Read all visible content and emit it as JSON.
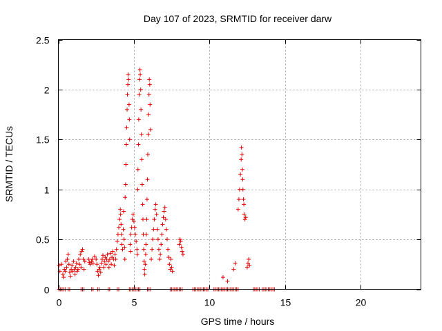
{
  "chart_data": {
    "type": "scatter",
    "title": "Day 107 of 2023, SRMTID for receiver darw",
    "xlabel": "GPS time / hours",
    "ylabel": "SRMTID / TECUs",
    "xlim": [
      0,
      24
    ],
    "ylim": [
      0,
      2.5
    ],
    "xticks": [
      0,
      5,
      10,
      15,
      20
    ],
    "yticks": [
      0,
      0.5,
      1,
      1.5,
      2,
      2.5
    ],
    "xtick_labels": [
      "0",
      "5",
      "10",
      "15",
      "20"
    ],
    "ytick_labels": [
      "0",
      "0.5",
      "1",
      "1.5",
      "2",
      "2.5"
    ],
    "grid": true,
    "marker": "plus",
    "color": "#e00000",
    "series": [
      {
        "name": "darw",
        "points": [
          [
            0.05,
            0.24
          ],
          [
            0.1,
            0.18
          ],
          [
            0.2,
            0.25
          ],
          [
            0.3,
            0.15
          ],
          [
            0.35,
            0.12
          ],
          [
            0.4,
            0.2
          ],
          [
            0.45,
            0.18
          ],
          [
            0.5,
            0.28
          ],
          [
            0.55,
            0.22
          ],
          [
            0.6,
            0.3
          ],
          [
            0.65,
            0.35
          ],
          [
            0.7,
            0.25
          ],
          [
            0.75,
            0.17
          ],
          [
            0.8,
            0.13
          ],
          [
            0.85,
            0.2
          ],
          [
            0.9,
            0.24
          ],
          [
            0.95,
            0.18
          ],
          [
            1.0,
            0.28
          ],
          [
            1.05,
            0.2
          ],
          [
            1.1,
            0.15
          ],
          [
            1.15,
            0.22
          ],
          [
            1.2,
            0.26
          ],
          [
            1.25,
            0.18
          ],
          [
            1.3,
            0.2
          ],
          [
            1.35,
            0.3
          ],
          [
            1.4,
            0.25
          ],
          [
            1.45,
            0.35
          ],
          [
            1.5,
            0.22
          ],
          [
            1.55,
            0.38
          ],
          [
            1.6,
            0.4
          ],
          [
            1.65,
            0.3
          ],
          [
            1.7,
            0.2
          ],
          [
            1.75,
            0.28
          ],
          [
            2.0,
            0.3
          ],
          [
            2.05,
            0.27
          ],
          [
            2.1,
            0.25
          ],
          [
            2.2,
            0.28
          ],
          [
            2.25,
            0.3
          ],
          [
            2.3,
            0.26
          ],
          [
            2.4,
            0.33
          ],
          [
            2.5,
            0.3
          ],
          [
            2.55,
            0.25
          ],
          [
            2.6,
            0.18
          ],
          [
            2.65,
            0.14
          ],
          [
            2.7,
            0.2
          ],
          [
            2.75,
            0.22
          ],
          [
            2.8,
            0.17
          ],
          [
            2.85,
            0.26
          ],
          [
            2.9,
            0.3
          ],
          [
            2.95,
            0.34
          ],
          [
            3.0,
            0.22
          ],
          [
            3.05,
            0.28
          ],
          [
            3.1,
            0.32
          ],
          [
            3.15,
            0.25
          ],
          [
            3.2,
            0.3
          ],
          [
            3.25,
            0.35
          ],
          [
            3.3,
            0.28
          ],
          [
            3.35,
            0.22
          ],
          [
            3.4,
            0.3
          ],
          [
            3.45,
            0.36
          ],
          [
            3.5,
            0.25
          ],
          [
            3.55,
            0.32
          ],
          [
            3.6,
            0.38
          ],
          [
            3.65,
            0.3
          ],
          [
            3.7,
            0.24
          ],
          [
            3.75,
            0.35
          ],
          [
            3.8,
            0.3
          ],
          [
            3.85,
            0.4
          ],
          [
            3.9,
            0.48
          ],
          [
            3.95,
            0.55
          ],
          [
            4.0,
            0.62
          ],
          [
            4.05,
            0.7
          ],
          [
            4.1,
            0.8
          ],
          [
            4.12,
            0.75
          ],
          [
            4.15,
            0.65
          ],
          [
            4.18,
            0.55
          ],
          [
            4.2,
            0.45
          ],
          [
            4.25,
            0.4
          ],
          [
            4.3,
            0.6
          ],
          [
            4.32,
            0.78
          ],
          [
            4.35,
            0.5
          ],
          [
            4.38,
            0.42
          ],
          [
            4.4,
            0.3
          ],
          [
            4.42,
            0.92
          ],
          [
            4.45,
            1.05
          ],
          [
            4.47,
            1.25
          ],
          [
            4.5,
            1.45
          ],
          [
            4.52,
            1.62
          ],
          [
            4.55,
            1.8
          ],
          [
            4.57,
            1.95
          ],
          [
            4.6,
            2.05
          ],
          [
            4.62,
            2.15
          ],
          [
            4.65,
            2.1
          ],
          [
            4.68,
            1.85
          ],
          [
            4.7,
            1.7
          ],
          [
            4.72,
            1.5
          ],
          [
            4.75,
            0.45
          ],
          [
            4.78,
            0.38
          ],
          [
            4.8,
            0.55
          ],
          [
            4.85,
            0.62
          ],
          [
            4.9,
            0.7
          ],
          [
            4.95,
            0.75
          ],
          [
            5.0,
            0.68
          ],
          [
            5.05,
            0.62
          ],
          [
            5.1,
            0.55
          ],
          [
            5.15,
            0.48
          ],
          [
            5.2,
            0.4
          ],
          [
            5.22,
            0.35
          ],
          [
            5.25,
            1.0
          ],
          [
            5.27,
            1.2
          ],
          [
            5.3,
            1.45
          ],
          [
            5.32,
            1.7
          ],
          [
            5.35,
            1.95
          ],
          [
            5.37,
            2.1
          ],
          [
            5.4,
            2.2
          ],
          [
            5.42,
            2.15
          ],
          [
            5.45,
            2.0
          ],
          [
            5.47,
            1.8
          ],
          [
            5.5,
            1.55
          ],
          [
            5.52,
            1.3
          ],
          [
            5.55,
            1.05
          ],
          [
            5.58,
            0.85
          ],
          [
            5.6,
            0.7
          ],
          [
            5.62,
            0.55
          ],
          [
            5.65,
            0.4
          ],
          [
            5.68,
            0.28
          ],
          [
            5.7,
            0.2
          ],
          [
            5.72,
            0.15
          ],
          [
            5.75,
            0.25
          ],
          [
            5.78,
            0.35
          ],
          [
            5.8,
            0.45
          ],
          [
            5.82,
            0.55
          ],
          [
            5.85,
            0.7
          ],
          [
            5.87,
            0.9
          ],
          [
            5.9,
            1.1
          ],
          [
            5.92,
            1.35
          ],
          [
            5.95,
            1.55
          ],
          [
            5.97,
            1.75
          ],
          [
            6.0,
            1.95
          ],
          [
            6.02,
            2.1
          ],
          [
            6.05,
            2.05
          ],
          [
            6.07,
            1.85
          ],
          [
            6.1,
            1.6
          ],
          [
            6.15,
            0.3
          ],
          [
            6.2,
            0.4
          ],
          [
            6.25,
            0.5
          ],
          [
            6.3,
            0.6
          ],
          [
            6.35,
            0.7
          ],
          [
            6.4,
            0.8
          ],
          [
            6.45,
            0.85
          ],
          [
            6.5,
            0.75
          ],
          [
            6.55,
            0.6
          ],
          [
            6.6,
            0.5
          ],
          [
            6.65,
            0.4
          ],
          [
            6.7,
            0.3
          ],
          [
            6.75,
            0.35
          ],
          [
            6.8,
            0.45
          ],
          [
            6.85,
            0.55
          ],
          [
            6.9,
            0.65
          ],
          [
            6.95,
            0.72
          ],
          [
            7.0,
            0.78
          ],
          [
            7.05,
            0.82
          ],
          [
            7.1,
            0.7
          ],
          [
            7.15,
            0.6
          ],
          [
            7.2,
            0.5
          ],
          [
            7.25,
            0.4
          ],
          [
            7.3,
            0.32
          ],
          [
            7.35,
            0.25
          ],
          [
            7.4,
            0.2
          ],
          [
            7.45,
            0.3
          ],
          [
            7.5,
            0.22
          ],
          [
            7.55,
            0.18
          ],
          [
            8.0,
            0.45
          ],
          [
            8.05,
            0.5
          ],
          [
            8.1,
            0.48
          ],
          [
            8.15,
            0.42
          ],
          [
            8.2,
            0.38
          ],
          [
            8.25,
            0.35
          ],
          [
            10.9,
            0.12
          ],
          [
            11.2,
            0.08
          ],
          [
            11.6,
            0.2
          ],
          [
            11.7,
            0.26
          ],
          [
            11.9,
            0.8
          ],
          [
            11.95,
            0.9
          ],
          [
            12.0,
            1.0
          ],
          [
            12.05,
            1.15
          ],
          [
            12.1,
            1.3
          ],
          [
            12.12,
            1.42
          ],
          [
            12.15,
            1.35
          ],
          [
            12.18,
            1.2
          ],
          [
            12.2,
            1.1
          ],
          [
            12.22,
            1.0
          ],
          [
            12.25,
            0.9
          ],
          [
            12.28,
            0.85
          ],
          [
            12.3,
            0.75
          ],
          [
            12.35,
            0.7
          ],
          [
            12.4,
            0.72
          ],
          [
            12.5,
            0.22
          ],
          [
            12.55,
            0.26
          ],
          [
            12.6,
            0.3
          ],
          [
            12.65,
            0.24
          ]
        ],
        "zero_ranges": [
          [
            0.05,
            0.45
          ],
          [
            0.65,
            0.8
          ],
          [
            1.5,
            1.7
          ],
          [
            2.2,
            2.3
          ],
          [
            2.6,
            2.75
          ],
          [
            3.3,
            3.4
          ],
          [
            3.9,
            4.0
          ],
          [
            4.7,
            5.4
          ],
          [
            5.9,
            6.1
          ],
          [
            7.4,
            8.2
          ],
          [
            8.9,
            9.95
          ],
          [
            10.3,
            11.9
          ],
          [
            12.9,
            13.3
          ],
          [
            13.5,
            13.8
          ],
          [
            13.9,
            14.3
          ]
        ]
      }
    ]
  }
}
